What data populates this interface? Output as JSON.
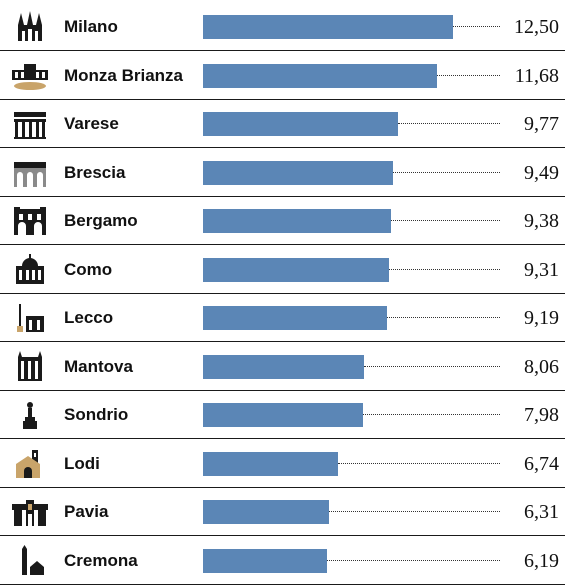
{
  "chart_data": {
    "type": "bar",
    "orientation": "horizontal",
    "categories": [
      "Milano",
      "Monza Brianza",
      "Varese",
      "Brescia",
      "Bergamo",
      "Como",
      "Lecco",
      "Mantova",
      "Sondrio",
      "Lodi",
      "Pavia",
      "Cremona"
    ],
    "value_labels": [
      "12,50",
      "11,68",
      "9,77",
      "9,49",
      "9,38",
      "9,31",
      "9,19",
      "8,06",
      "7,98",
      "6,74",
      "6,31",
      "6,19"
    ],
    "values": [
      12.5,
      11.68,
      9.77,
      9.49,
      9.38,
      9.31,
      9.19,
      8.06,
      7.98,
      6.74,
      6.31,
      6.19
    ],
    "icons": [
      "milano-duomo-icon",
      "monza-villa-reale-icon",
      "varese-palazzo-icon",
      "brescia-loggia-icon",
      "bergamo-palazzo-icon",
      "como-duomo-icon",
      "lecco-monument-icon",
      "mantova-palazzo-icon",
      "sondrio-statue-icon",
      "lodi-cathedral-icon",
      "pavia-broletto-icon",
      "cremona-torrazzo-icon"
    ],
    "bar_color": "#5b86b6",
    "title": "",
    "xlabel": "",
    "ylabel": "",
    "xlim": [
      0,
      12.5
    ],
    "grid": false,
    "legend": "none"
  }
}
